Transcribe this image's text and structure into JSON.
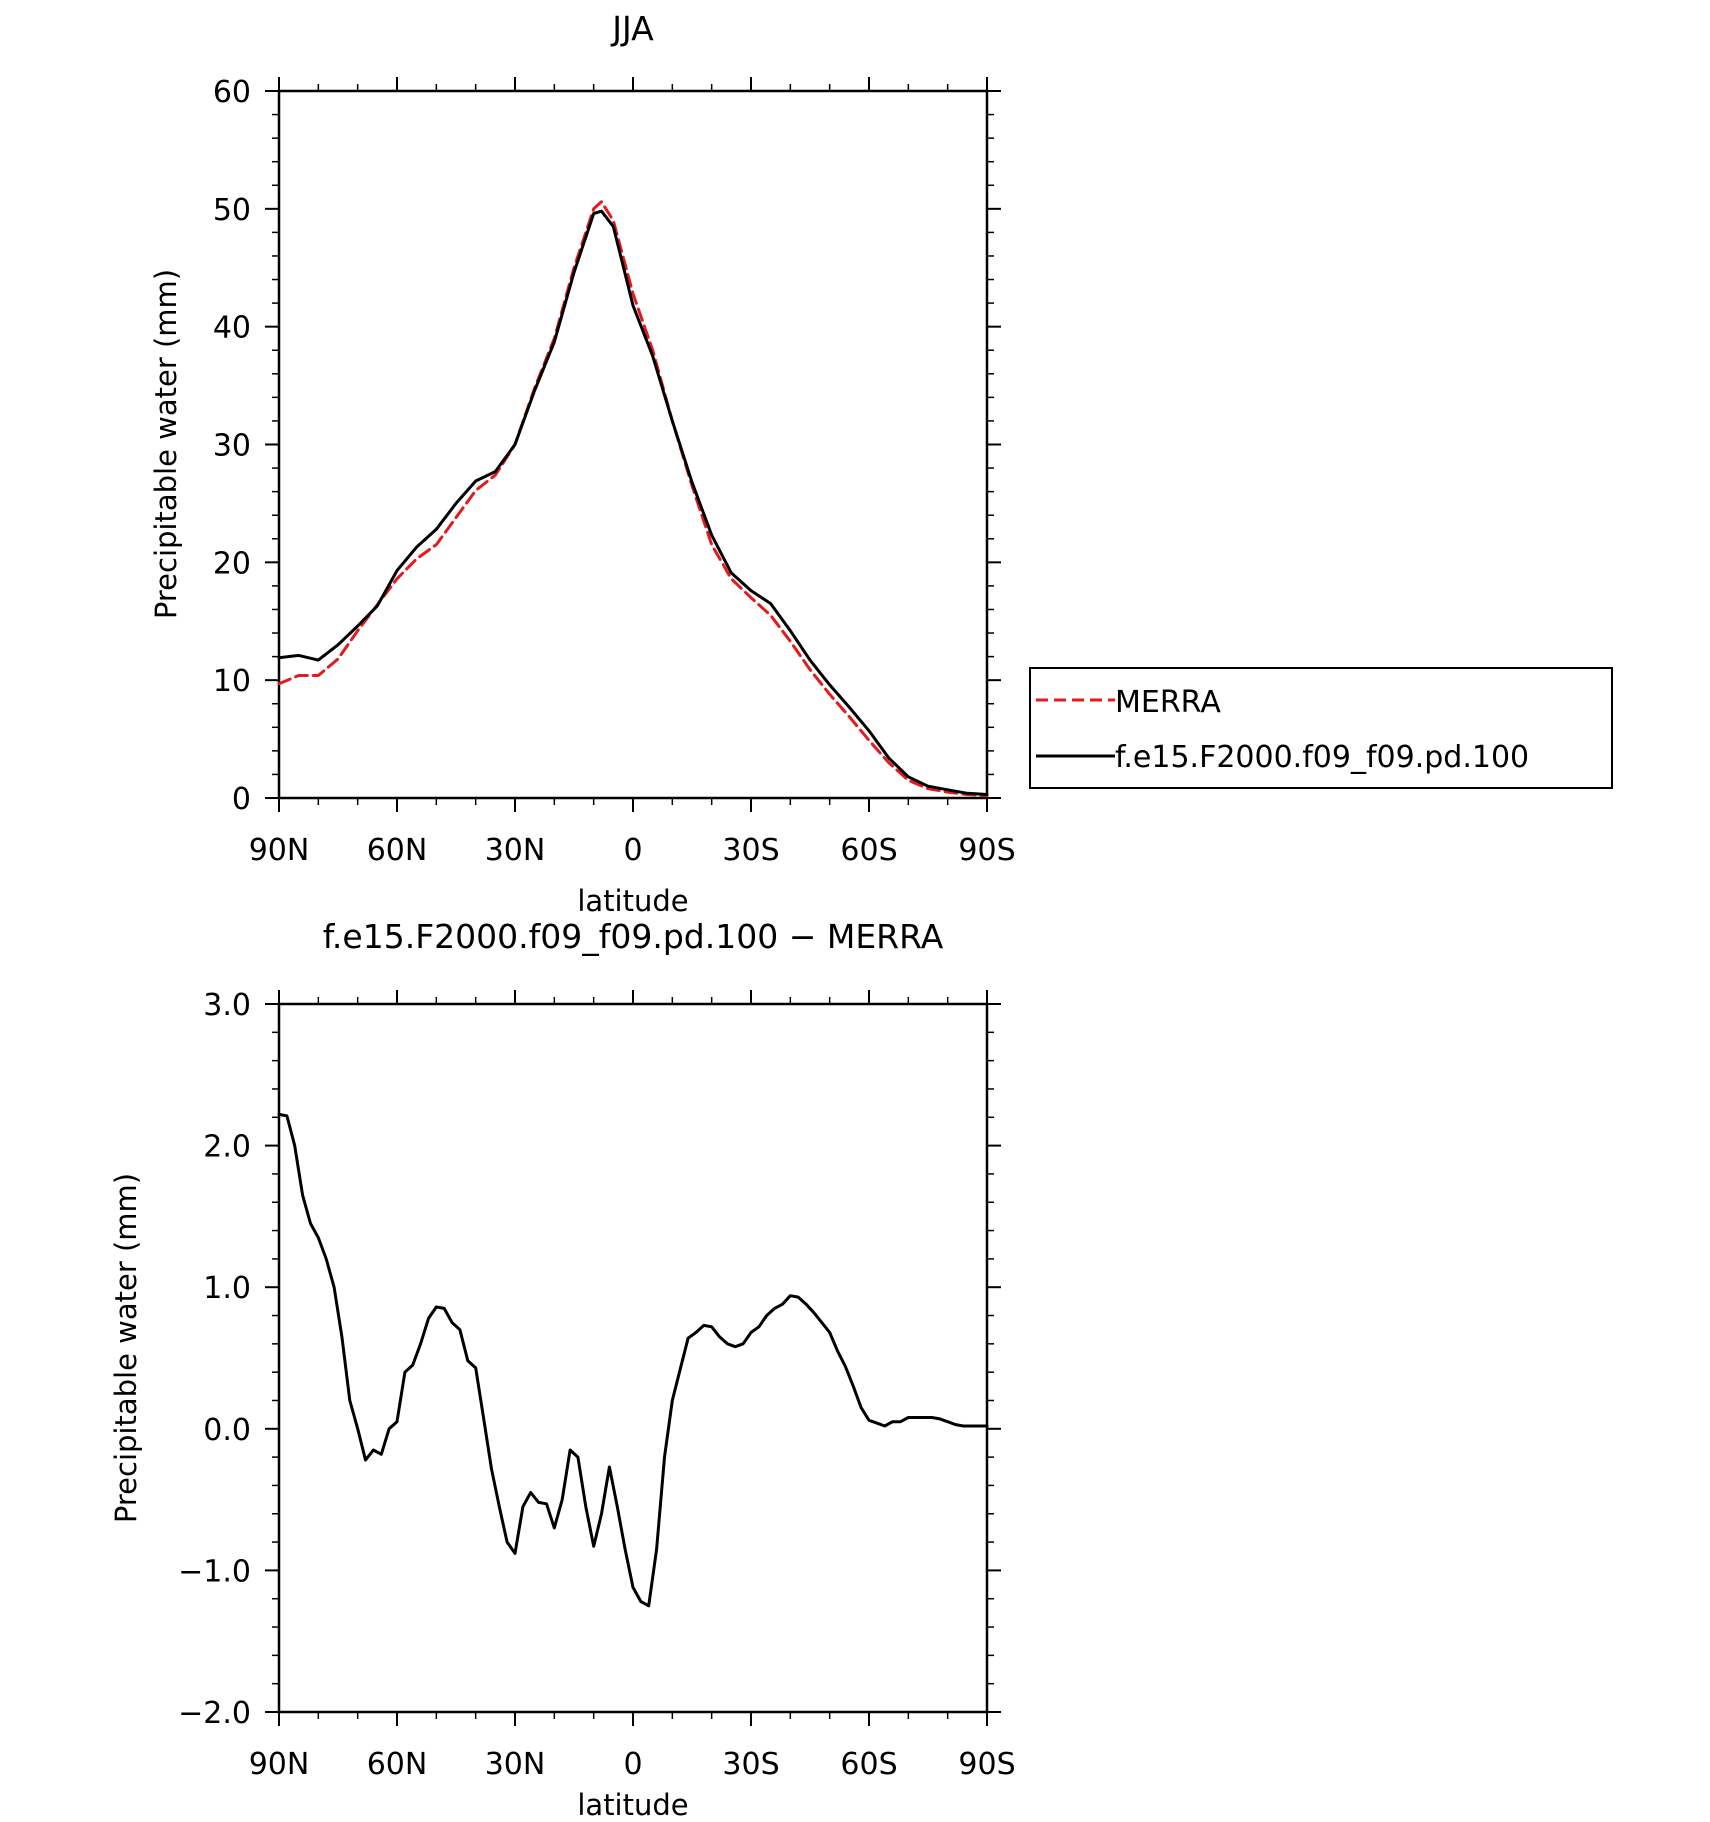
{
  "chart_data": [
    {
      "type": "line",
      "title": "JJA",
      "xlabel": "latitude",
      "ylabel": "Precipitable water (mm)",
      "xlim": [
        90,
        -90
      ],
      "ylim": [
        0,
        60
      ],
      "xticks": [
        90,
        60,
        30,
        0,
        -30,
        -60,
        -90
      ],
      "xtick_labels": [
        "90N",
        "60N",
        "30N",
        "0",
        "30S",
        "60S",
        "90S"
      ],
      "yticks": [
        0,
        10,
        20,
        30,
        40,
        50,
        60
      ],
      "ytick_labels": [
        "0",
        "10",
        "20",
        "30",
        "40",
        "50",
        "60"
      ],
      "grid": false,
      "legend": "right, outside plot",
      "series": [
        {
          "name": "MERRA",
          "color": "#e41a1c",
          "dash": "dashed",
          "x": [
            90,
            85,
            80,
            75,
            70,
            65,
            60,
            55,
            50,
            45,
            40,
            35,
            30,
            25,
            20,
            15,
            10,
            8,
            5,
            0,
            -5,
            -10,
            -15,
            -20,
            -25,
            -30,
            -35,
            -40,
            -45,
            -50,
            -55,
            -60,
            -65,
            -70,
            -75,
            -80,
            -85,
            -90
          ],
          "y": [
            9.7,
            10.4,
            10.4,
            11.8,
            14.2,
            16.4,
            18.6,
            20.3,
            21.5,
            23.8,
            26.1,
            27.4,
            30.0,
            34.8,
            39.0,
            45.0,
            50.0,
            50.6,
            49.0,
            42.8,
            38.0,
            32.0,
            26.5,
            21.5,
            18.6,
            17.0,
            15.5,
            13.3,
            10.9,
            8.8,
            6.9,
            4.9,
            3.0,
            1.5,
            0.8,
            0.5,
            0.3,
            0.2
          ]
        },
        {
          "name": "f.e15.F2000.f09_f09.pd.100",
          "color": "#000000",
          "dash": "solid",
          "x": [
            90,
            85,
            80,
            75,
            70,
            65,
            60,
            55,
            50,
            45,
            40,
            35,
            30,
            25,
            20,
            15,
            10,
            8,
            5,
            0,
            -5,
            -10,
            -15,
            -20,
            -25,
            -30,
            -35,
            -40,
            -45,
            -50,
            -55,
            -60,
            -65,
            -70,
            -75,
            -80,
            -85,
            -90
          ],
          "y": [
            11.9,
            12.1,
            11.7,
            13.0,
            14.6,
            16.3,
            19.3,
            21.3,
            22.8,
            25.0,
            26.9,
            27.7,
            30.0,
            34.6,
            38.7,
            44.6,
            49.6,
            49.8,
            48.5,
            41.8,
            37.5,
            32.0,
            26.8,
            22.3,
            19.1,
            17.6,
            16.5,
            14.2,
            11.7,
            9.6,
            7.7,
            5.7,
            3.4,
            1.8,
            1.0,
            0.7,
            0.4,
            0.3
          ]
        }
      ]
    },
    {
      "type": "line",
      "title": "f.e15.F2000.f09_f09.pd.100 − MERRA",
      "xlabel": "latitude",
      "ylabel": "Precipitable water (mm)",
      "xlim": [
        90,
        -90
      ],
      "ylim": [
        -2.0,
        3.0
      ],
      "xticks": [
        90,
        60,
        30,
        0,
        -30,
        -60,
        -90
      ],
      "xtick_labels": [
        "90N",
        "60N",
        "30N",
        "0",
        "30S",
        "60S",
        "90S"
      ],
      "yticks": [
        -2.0,
        -1.0,
        0.0,
        1.0,
        2.0,
        3.0
      ],
      "ytick_labels": [
        "−2.0",
        "−1.0",
        "0.0",
        "1.0",
        "2.0",
        "3.0"
      ],
      "grid": false,
      "series": [
        {
          "color": "#000000",
          "dash": "solid",
          "x": [
            90,
            88,
            86,
            84,
            82,
            80,
            78,
            76,
            74,
            72,
            70,
            68,
            66,
            64,
            62,
            60,
            58,
            56,
            54,
            52,
            50,
            48,
            46,
            44,
            42,
            40,
            38,
            36,
            34,
            32,
            30,
            28,
            26,
            24,
            22,
            20,
            18,
            16,
            14,
            12,
            10,
            8,
            6,
            4,
            2,
            0,
            -2,
            -4,
            -6,
            -8,
            -10,
            -12,
            -14,
            -16,
            -18,
            -20,
            -22,
            -24,
            -26,
            -28,
            -30,
            -32,
            -34,
            -36,
            -38,
            -40,
            -42,
            -44,
            -46,
            -48,
            -50,
            -52,
            -54,
            -56,
            -58,
            -60,
            -62,
            -64,
            -66,
            -68,
            -70,
            -72,
            -74,
            -76,
            -78,
            -80,
            -82,
            -84,
            -86,
            -88,
            -90
          ],
          "y": [
            2.22,
            2.21,
            2.0,
            1.65,
            1.45,
            1.35,
            1.2,
            1.0,
            0.65,
            0.2,
            0.0,
            -0.22,
            -0.15,
            -0.18,
            0.0,
            0.05,
            0.4,
            0.45,
            0.6,
            0.78,
            0.86,
            0.85,
            0.75,
            0.7,
            0.48,
            0.43,
            0.08,
            -0.28,
            -0.55,
            -0.8,
            -0.88,
            -0.55,
            -0.45,
            -0.52,
            -0.53,
            -0.7,
            -0.5,
            -0.15,
            -0.2,
            -0.55,
            -0.83,
            -0.6,
            -0.27,
            -0.55,
            -0.85,
            -1.12,
            -1.22,
            -1.25,
            -0.85,
            -0.2,
            0.2,
            0.42,
            0.64,
            0.68,
            0.73,
            0.72,
            0.65,
            0.6,
            0.58,
            0.6,
            0.68,
            0.72,
            0.8,
            0.85,
            0.88,
            0.94,
            0.93,
            0.88,
            0.82,
            0.75,
            0.68,
            0.55,
            0.44,
            0.3,
            0.15,
            0.06,
            0.04,
            0.02,
            0.05,
            0.05,
            0.08,
            0.08,
            0.08,
            0.08,
            0.07,
            0.05,
            0.03,
            0.02,
            0.02,
            0.02,
            0.02
          ]
        }
      ]
    }
  ]
}
